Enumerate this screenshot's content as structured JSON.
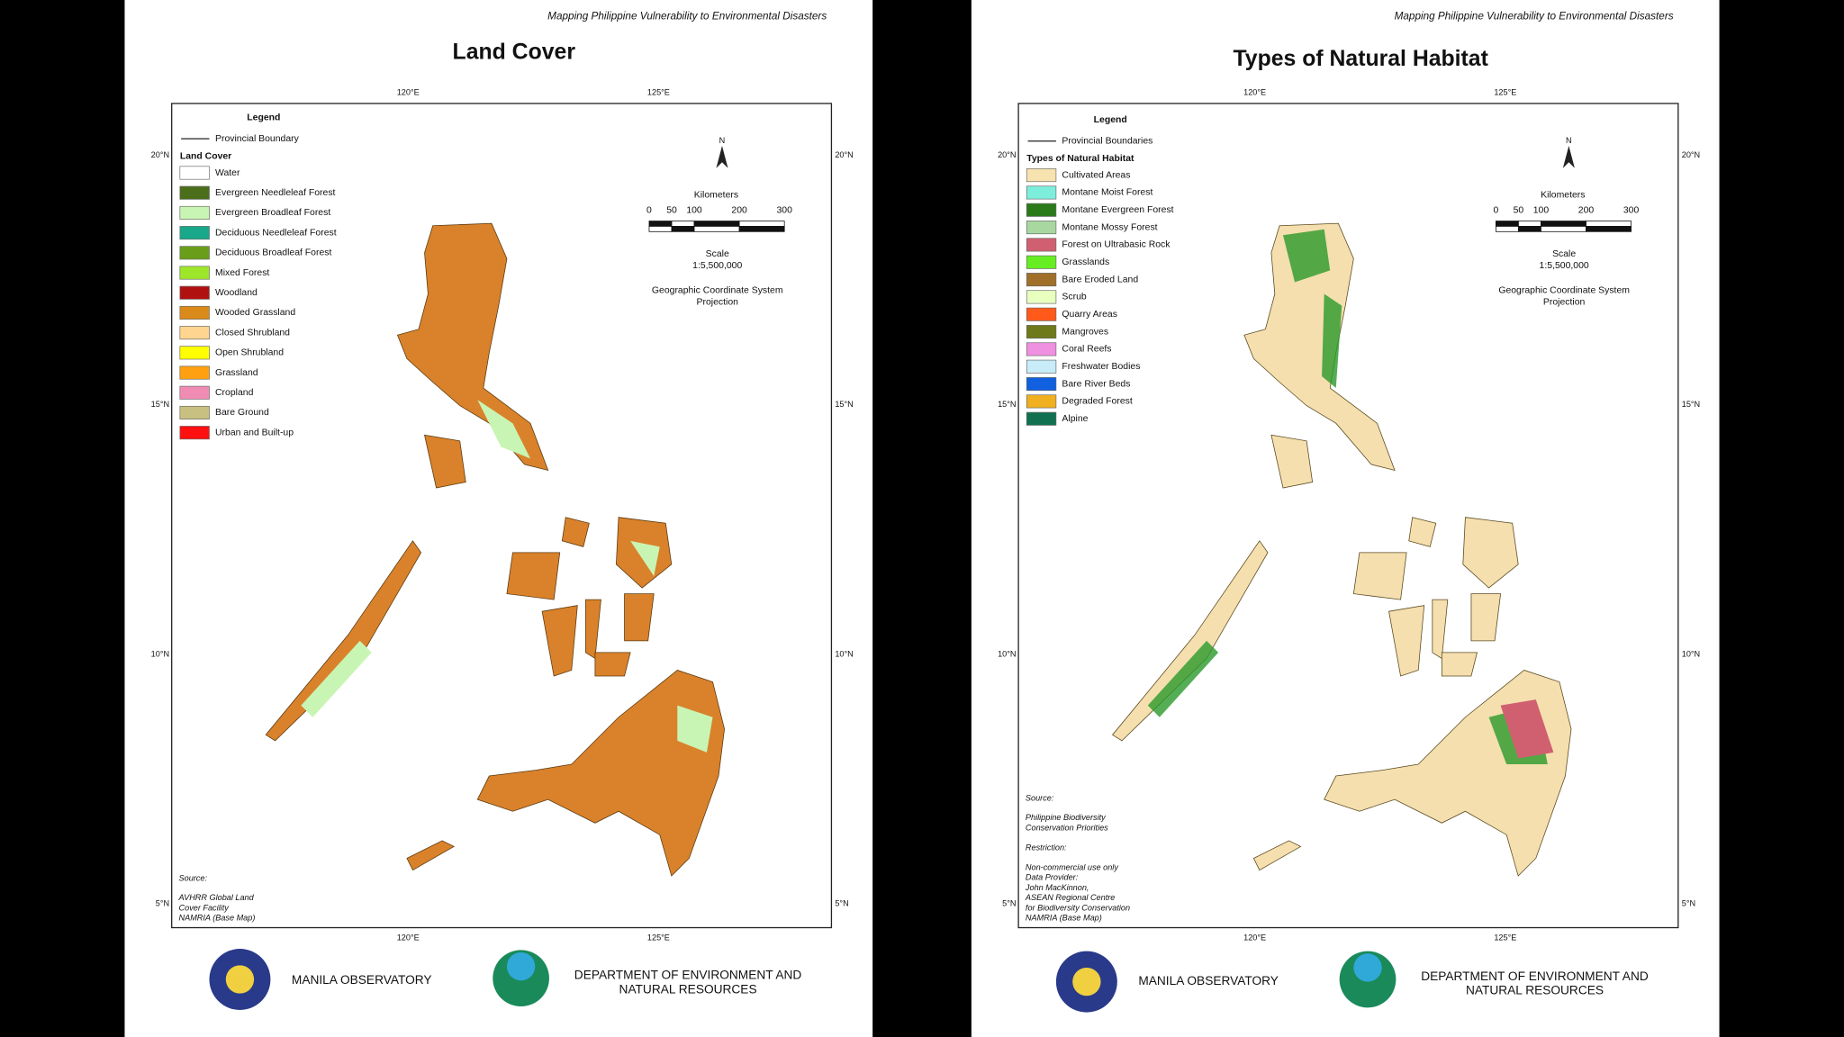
{
  "panels": [
    {
      "header": "Mapping Philippine Vulnerability to Environmental Disasters",
      "title": "Land Cover",
      "legend": {
        "title": "Legend",
        "boundary": "Provincial Boundary",
        "section": "Land Cover",
        "items": [
          {
            "label": "Water",
            "color": "#ffffff"
          },
          {
            "label": "Evergreen Needleleaf Forest",
            "color": "#4a6e1a"
          },
          {
            "label": "Evergreen Broadleaf Forest",
            "color": "#c8f5b4"
          },
          {
            "label": "Deciduous Needleleaf Forest",
            "color": "#1aa88a"
          },
          {
            "label": "Deciduous Broadleaf Forest",
            "color": "#6a9e1a"
          },
          {
            "label": "Mixed Forest",
            "color": "#9ee62a"
          },
          {
            "label": "Woodland",
            "color": "#b01010"
          },
          {
            "label": "Wooded Grassland",
            "color": "#d98a1a"
          },
          {
            "label": "Closed Shrubland",
            "color": "#ffd590"
          },
          {
            "label": "Open Shrubland",
            "color": "#ffff00"
          },
          {
            "label": "Grassland",
            "color": "#ffa010"
          },
          {
            "label": "Cropland",
            "color": "#f08cb4"
          },
          {
            "label": "Bare Ground",
            "color": "#c8c080"
          },
          {
            "label": "Urban and Built-up",
            "color": "#ff1010"
          }
        ]
      },
      "north": "N",
      "scale": {
        "unit": "Kilometers",
        "ticks": [
          0,
          50,
          100,
          200,
          300
        ],
        "label": "Scale",
        "ratio": "1:5,500,000"
      },
      "crs": "Geographic Coordinate System",
      "projection": "Projection",
      "lon_labels": [
        "120°E",
        "125°E"
      ],
      "lat_labels": [
        "20°N",
        "15°N",
        "10°N",
        "5°N"
      ],
      "notes": [
        {
          "label": "Source:",
          "lines": [
            "AVHRR Global Land",
            "Cover Facility",
            "NAMRIA (Base Map)"
          ]
        }
      ],
      "footer": {
        "observatory": "MANILA OBSERVATORY",
        "denr": [
          "DEPARTMENT OF ENVIRONMENT AND",
          "NATURAL RESOURCES"
        ]
      }
    },
    {
      "header": "Mapping Philippine Vulnerability to Environmental Disasters",
      "title": "Types of Natural Habitat",
      "legend": {
        "title": "Legend",
        "boundary": "Provincial Boundaries",
        "section": "Types of Natural Habitat",
        "items": [
          {
            "label": "Cultivated Areas",
            "color": "#f7e3b0"
          },
          {
            "label": "Montane Moist Forest",
            "color": "#7eeedc"
          },
          {
            "label": "Montane Evergreen Forest",
            "color": "#2a7a1a"
          },
          {
            "label": "Montane Mossy Forest",
            "color": "#a8d8a0"
          },
          {
            "label": "Forest on Ultrabasic Rock",
            "color": "#d06070"
          },
          {
            "label": "Grasslands",
            "color": "#66ee22"
          },
          {
            "label": "Bare Eroded Land",
            "color": "#a0702a"
          },
          {
            "label": "Scrub",
            "color": "#e8ffc0"
          },
          {
            "label": "Quarry Areas",
            "color": "#ff5a1a"
          },
          {
            "label": "Mangroves",
            "color": "#6e7a1a"
          },
          {
            "label": "Coral Reefs",
            "color": "#f090e0"
          },
          {
            "label": "Freshwater Bodies",
            "color": "#c8ecf8"
          },
          {
            "label": "Bare River Beds",
            "color": "#1060e0"
          },
          {
            "label": "Degraded Forest",
            "color": "#f0b020"
          },
          {
            "label": "Alpine",
            "color": "#107050"
          }
        ]
      },
      "north": "N",
      "scale": {
        "unit": "Kilometers",
        "ticks": [
          0,
          50,
          100,
          200,
          300
        ],
        "label": "Scale",
        "ratio": "1:5,500,000"
      },
      "crs": "Geographic Coordinate System",
      "projection": "Projection",
      "lon_labels": [
        "120°E",
        "125°E"
      ],
      "lat_labels": [
        "20°N",
        "15°N",
        "10°N",
        "5°N"
      ],
      "notes": [
        {
          "label": "Source:",
          "lines": [
            "Philippine Biodiversity",
            "Conservation Priorities"
          ]
        },
        {
          "label": "Restriction:",
          "lines": [
            "Non-commercial use only",
            "Data Provider:",
            "John MacKinnon,",
            "ASEAN Regional Centre",
            "for Biodiversity Conservation",
            "NAMRIA (Base Map)"
          ]
        }
      ],
      "footer": {
        "observatory": "MANILA OBSERVATORY",
        "denr": [
          "DEPARTMENT OF ENVIRONMENT AND",
          "NATURAL RESOURCES"
        ]
      }
    }
  ]
}
